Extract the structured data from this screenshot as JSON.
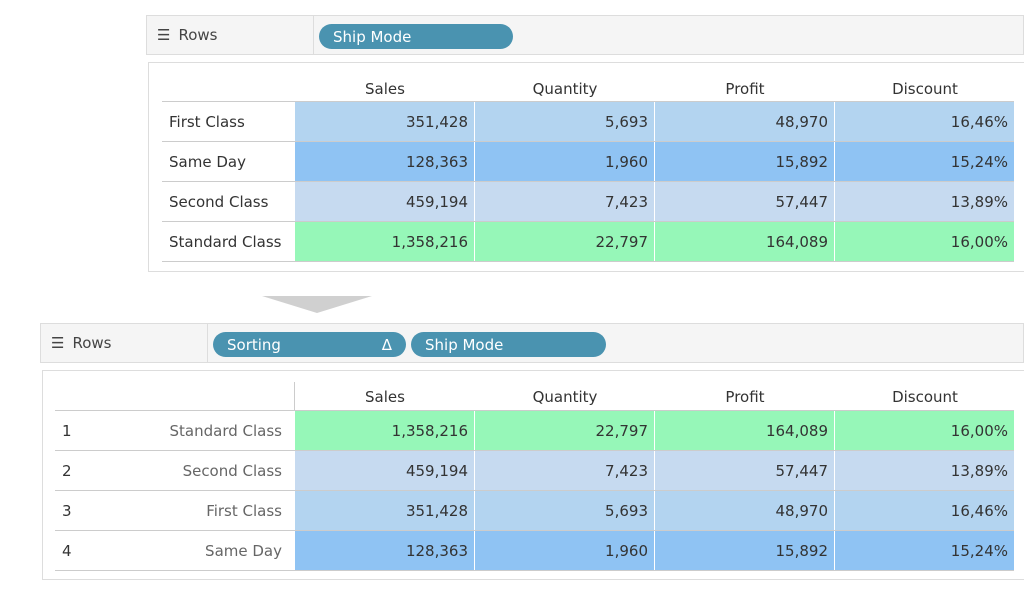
{
  "top": {
    "shelf_label": "Rows",
    "shelf_icon": "list-icon",
    "pills": [
      "Ship Mode"
    ],
    "columns": [
      "Sales",
      "Quantity",
      "Profit",
      "Discount"
    ],
    "rows": [
      {
        "label": "First Class",
        "values": [
          "351,428",
          "5,693",
          "48,970",
          "16,46%"
        ],
        "color": "#b3d4f0"
      },
      {
        "label": "Same Day",
        "values": [
          "128,363",
          "1,960",
          "15,892",
          "15,24%"
        ],
        "color": "#8fc3f3"
      },
      {
        "label": "Second Class",
        "values": [
          "459,194",
          "7,423",
          "57,447",
          "13,89%"
        ],
        "color": "#c6daf0"
      },
      {
        "label": "Standard Class",
        "values": [
          "1,358,216",
          "22,797",
          "164,089",
          "16,00%"
        ],
        "color": "#96f7b8"
      }
    ]
  },
  "bottom": {
    "shelf_label": "Rows",
    "shelf_icon": "list-icon",
    "pills": [
      "Sorting",
      "Ship Mode"
    ],
    "sorting_pill_icon": "Δ",
    "columns": [
      "Sales",
      "Quantity",
      "Profit",
      "Discount"
    ],
    "rows": [
      {
        "index": "1",
        "label": "Standard Class",
        "values": [
          "1,358,216",
          "22,797",
          "164,089",
          "16,00%"
        ],
        "color": "#96f7b8"
      },
      {
        "index": "2",
        "label": "Second Class",
        "values": [
          "459,194",
          "7,423",
          "57,447",
          "13,89%"
        ],
        "color": "#c6daf0"
      },
      {
        "index": "3",
        "label": "First Class",
        "values": [
          "351,428",
          "5,693",
          "48,970",
          "16,46%"
        ],
        "color": "#b3d4f0"
      },
      {
        "index": "4",
        "label": "Same Day",
        "values": [
          "128,363",
          "1,960",
          "15,892",
          "15,24%"
        ],
        "color": "#8fc3f3"
      }
    ]
  },
  "colors": {
    "pill": "#4a93b0",
    "arrow": "#d0d0d0"
  }
}
